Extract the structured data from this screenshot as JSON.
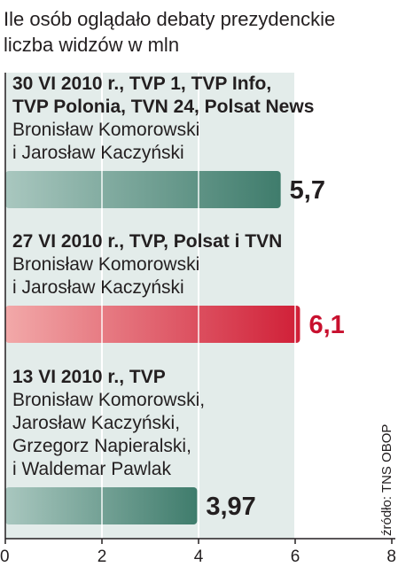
{
  "chart_data": {
    "type": "bar",
    "orientation": "horizontal",
    "title": "Ile osób oglądało debaty prezydenckie",
    "subtitle": "liczba widzów w mln",
    "xlim": [
      0,
      8
    ],
    "xticks": [
      "0",
      "2",
      "4",
      "6",
      "8"
    ],
    "grid": true,
    "source": "źródło: TNS OBOP",
    "categories": [
      {
        "heading": [
          "30 VI 2010 r., TVP 1, TVP Info,",
          "TVP Polonia, TVN 24, Polsat News"
        ],
        "participants": [
          "Bronisław Komorowski",
          "i Jarosław Kaczyński"
        ],
        "value": 5.7,
        "label": "5,7",
        "color": "#4e8a7a",
        "label_color": "#231f20"
      },
      {
        "heading": [
          "27 VI 2010 r., TVP, Polsat i TVN"
        ],
        "participants": [
          "Bronisław Komorowski",
          "i Jarosław Kaczyński"
        ],
        "value": 6.1,
        "label": "6,1",
        "color": "#d8283e",
        "label_color": "#c8102e"
      },
      {
        "heading": [
          "13 VI 2010 r., TVP"
        ],
        "participants": [
          "Bronisław Komorowski,",
          "Jarosław Kaczyński,",
          "Grzegorz Napieralski,",
          "i Waldemar Pawlak"
        ],
        "value": 3.97,
        "label": "3,97",
        "color": "#4e8a7a",
        "label_color": "#231f20"
      }
    ]
  },
  "colors": {
    "plot_background": "#e3ecea",
    "grid": "#ffffff",
    "axis": "#231f20"
  }
}
